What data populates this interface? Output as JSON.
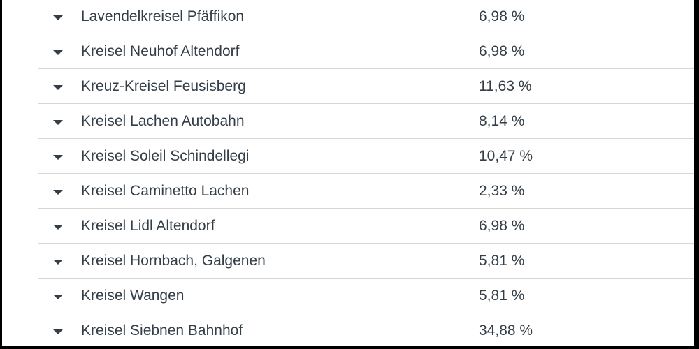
{
  "icons": {
    "row_toggle": "caret-down-icon"
  },
  "colors": {
    "text": "#333e48",
    "divider": "#d6d6d6",
    "frame": "#000000"
  },
  "rows": [
    {
      "label": "Lavendelkreisel Pfäffikon",
      "value": "6,98 %"
    },
    {
      "label": "Kreisel Neuhof Altendorf",
      "value": "6,98 %"
    },
    {
      "label": "Kreuz-Kreisel Feusisberg",
      "value": "11,63 %"
    },
    {
      "label": "Kreisel Lachen Autobahn",
      "value": "8,14 %"
    },
    {
      "label": "Kreisel Soleil Schindellegi",
      "value": "10,47 %"
    },
    {
      "label": "Kreisel Caminetto Lachen",
      "value": "2,33 %"
    },
    {
      "label": "Kreisel Lidl Altendorf",
      "value": "6,98 %"
    },
    {
      "label": "Kreisel Hornbach, Galgenen",
      "value": "5,81 %"
    },
    {
      "label": "Kreisel Wangen",
      "value": "5,81 %"
    },
    {
      "label": "Kreisel Siebnen Bahnhof",
      "value": "34,88 %"
    }
  ]
}
